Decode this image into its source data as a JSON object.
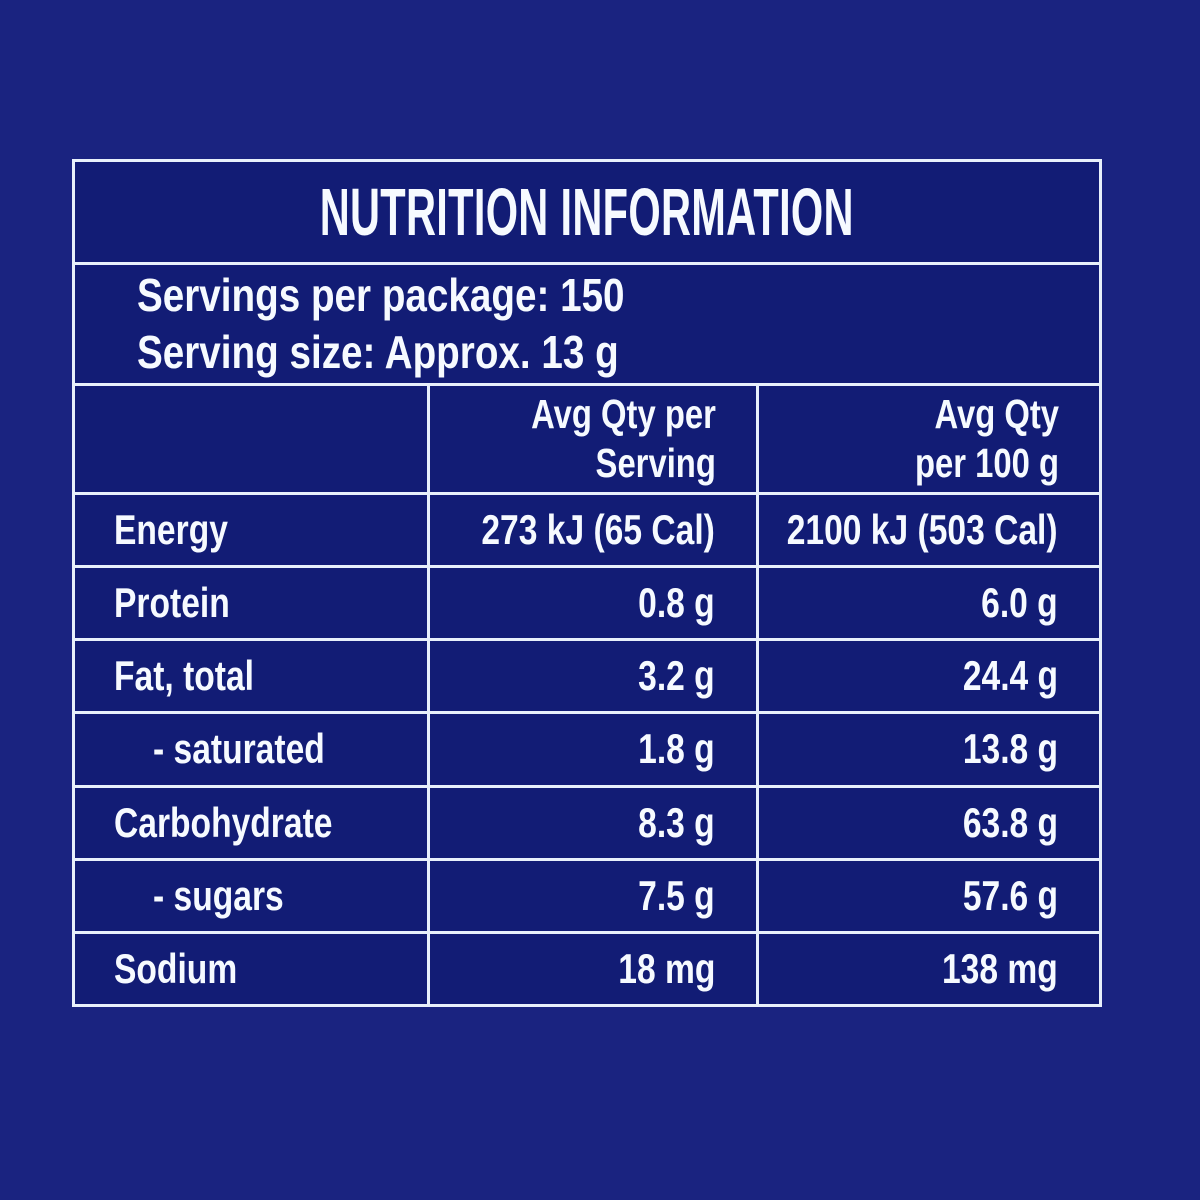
{
  "colors": {
    "page_background": "#1a2380",
    "cell_background": "#121c75",
    "gridline": "#e8f0fb",
    "text": "#f6faff"
  },
  "panel": {
    "title": "NUTRITION INFORMATION",
    "serving_info": {
      "servings_per_package": "Servings per package: 150",
      "serving_size": "Serving size: Approx. 13 g"
    },
    "table": {
      "columns": {
        "per_serving": {
          "line1": "Avg Qty per",
          "line2": "Serving"
        },
        "per_100g": {
          "line1": "Avg Qty",
          "line2": "per 100 g"
        }
      },
      "rows": [
        {
          "label": "Energy",
          "indent": false,
          "per_serving": "273 kJ (65 Cal)",
          "per_100g": "2100 kJ (503 Cal)"
        },
        {
          "label": "Protein",
          "indent": false,
          "per_serving": "0.8 g",
          "per_100g": "6.0 g"
        },
        {
          "label": "Fat, total",
          "indent": false,
          "per_serving": "3.2 g",
          "per_100g": "24.4 g"
        },
        {
          "label": "- saturated",
          "indent": true,
          "per_serving": "1.8 g",
          "per_100g": "13.8 g"
        },
        {
          "label": "Carbohydrate",
          "indent": false,
          "per_serving": "8.3 g",
          "per_100g": "63.8 g"
        },
        {
          "label": "- sugars",
          "indent": true,
          "per_serving": "7.5 g",
          "per_100g": "57.6 g"
        },
        {
          "label": "Sodium",
          "indent": false,
          "per_serving": "18 mg",
          "per_100g": "138 mg"
        }
      ]
    }
  }
}
